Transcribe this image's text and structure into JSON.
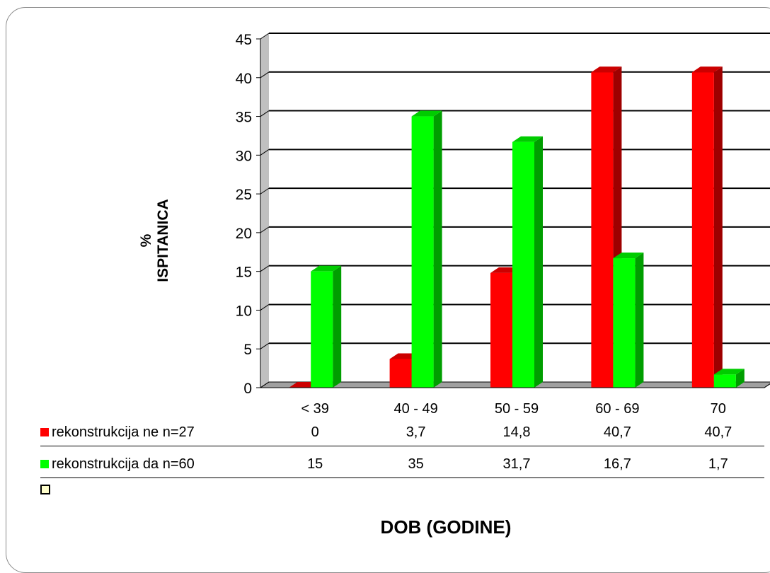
{
  "chart_data": {
    "type": "bar",
    "xlabel": "DOB (GODINE)",
    "ylabel": [
      "%",
      "ISPITANICA"
    ],
    "categories": [
      "< 39",
      "40 - 49",
      "50 - 59",
      "60 - 69",
      "70"
    ],
    "series": [
      {
        "name": "rekonstrukcija ne n=27",
        "color": "#ff0000",
        "values": [
          0,
          3.7,
          14.8,
          40.7,
          40.7
        ],
        "labels": [
          "0",
          "3,7",
          "14,8",
          "40,7",
          "40,7"
        ]
      },
      {
        "name": "rekonstrukcija da n=60",
        "color": "#00ff00",
        "values": [
          15,
          35,
          31.7,
          16.7,
          1.7
        ],
        "labels": [
          "15",
          "35",
          "31,7",
          "16,7",
          "1,7"
        ]
      }
    ],
    "ylim": [
      0,
      45
    ],
    "yticks": [
      0,
      5,
      10,
      15,
      20,
      25,
      30,
      35,
      40,
      45
    ],
    "grid": true,
    "style": "3d-column",
    "legend": "data-table-below"
  }
}
